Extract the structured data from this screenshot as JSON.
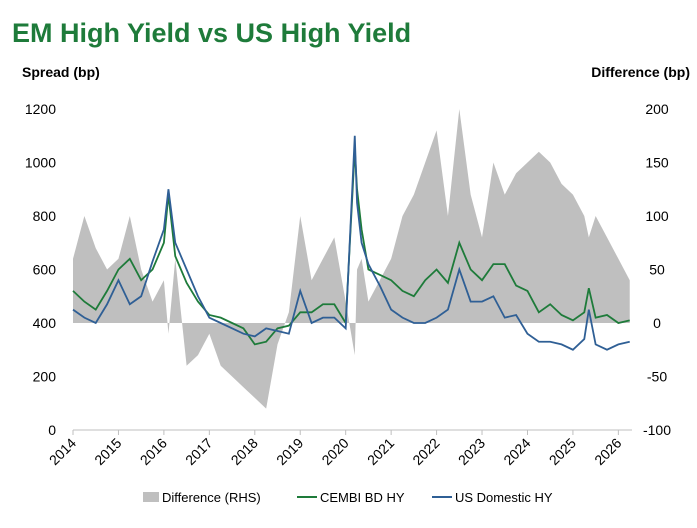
{
  "chart_data": {
    "type": "line",
    "title": "EM High Yield vs US High Yield",
    "y_label": "Spread (bp)",
    "y2_label": "Difference (bp)",
    "x": [
      2014.0,
      2014.25,
      2014.5,
      2014.75,
      2015.0,
      2015.25,
      2015.5,
      2015.75,
      2016.0,
      2016.1,
      2016.25,
      2016.5,
      2016.75,
      2017.0,
      2017.25,
      2017.5,
      2017.75,
      2018.0,
      2018.25,
      2018.5,
      2018.75,
      2019.0,
      2019.25,
      2019.5,
      2019.75,
      2020.0,
      2020.2,
      2020.25,
      2020.35,
      2020.5,
      2020.75,
      2021.0,
      2021.25,
      2021.5,
      2021.75,
      2022.0,
      2022.25,
      2022.5,
      2022.75,
      2023.0,
      2023.25,
      2023.5,
      2023.75,
      2024.0,
      2024.25,
      2024.5,
      2024.75,
      2025.0,
      2025.25,
      2025.35,
      2025.5,
      2025.75,
      2026.0,
      2026.25
    ],
    "xlim": [
      2014,
      2026.3
    ],
    "xticks": [
      2014,
      2015,
      2016,
      2017,
      2018,
      2019,
      2020,
      2021,
      2022,
      2023,
      2024,
      2025,
      2026
    ],
    "ylim": [
      0,
      1200
    ],
    "yticks": [
      0,
      200,
      400,
      600,
      800,
      1000,
      1200
    ],
    "y2lim": [
      -100,
      200
    ],
    "y2ticks": [
      -100,
      -50,
      0,
      50,
      100,
      150,
      200
    ],
    "series": [
      {
        "name": "Difference (RHS)",
        "color": "#bfbfbf",
        "axis": "y2",
        "kind": "area",
        "values": [
          60,
          100,
          70,
          50,
          60,
          100,
          50,
          20,
          40,
          -10,
          60,
          -40,
          -30,
          -10,
          -40,
          -50,
          -60,
          -70,
          -80,
          -20,
          10,
          100,
          40,
          60,
          80,
          20,
          -30,
          50,
          60,
          20,
          40,
          60,
          100,
          120,
          150,
          180,
          100,
          200,
          120,
          80,
          150,
          120,
          140,
          150,
          160,
          150,
          130,
          120,
          100,
          80,
          100,
          80,
          60,
          40
        ]
      },
      {
        "name": "CEMBI BD HY",
        "color": "#1e7b3a",
        "kind": "line",
        "values": [
          520,
          480,
          450,
          520,
          600,
          640,
          560,
          600,
          700,
          880,
          650,
          550,
          480,
          430,
          420,
          400,
          380,
          320,
          330,
          380,
          390,
          440,
          440,
          470,
          470,
          400,
          1050,
          900,
          750,
          600,
          580,
          560,
          520,
          500,
          560,
          600,
          550,
          700,
          600,
          560,
          620,
          620,
          540,
          520,
          440,
          470,
          430,
          410,
          440,
          530,
          420,
          430,
          400,
          410
        ]
      },
      {
        "name": "US Domestic HY",
        "color": "#2f5f95",
        "kind": "line",
        "values": [
          450,
          420,
          400,
          470,
          560,
          470,
          500,
          630,
          750,
          900,
          700,
          600,
          500,
          420,
          400,
          380,
          360,
          350,
          380,
          370,
          360,
          520,
          400,
          420,
          420,
          380,
          1100,
          850,
          700,
          620,
          540,
          450,
          420,
          400,
          400,
          420,
          450,
          600,
          480,
          480,
          500,
          420,
          430,
          360,
          330,
          330,
          320,
          300,
          340,
          450,
          320,
          300,
          320,
          330
        ]
      }
    ]
  }
}
